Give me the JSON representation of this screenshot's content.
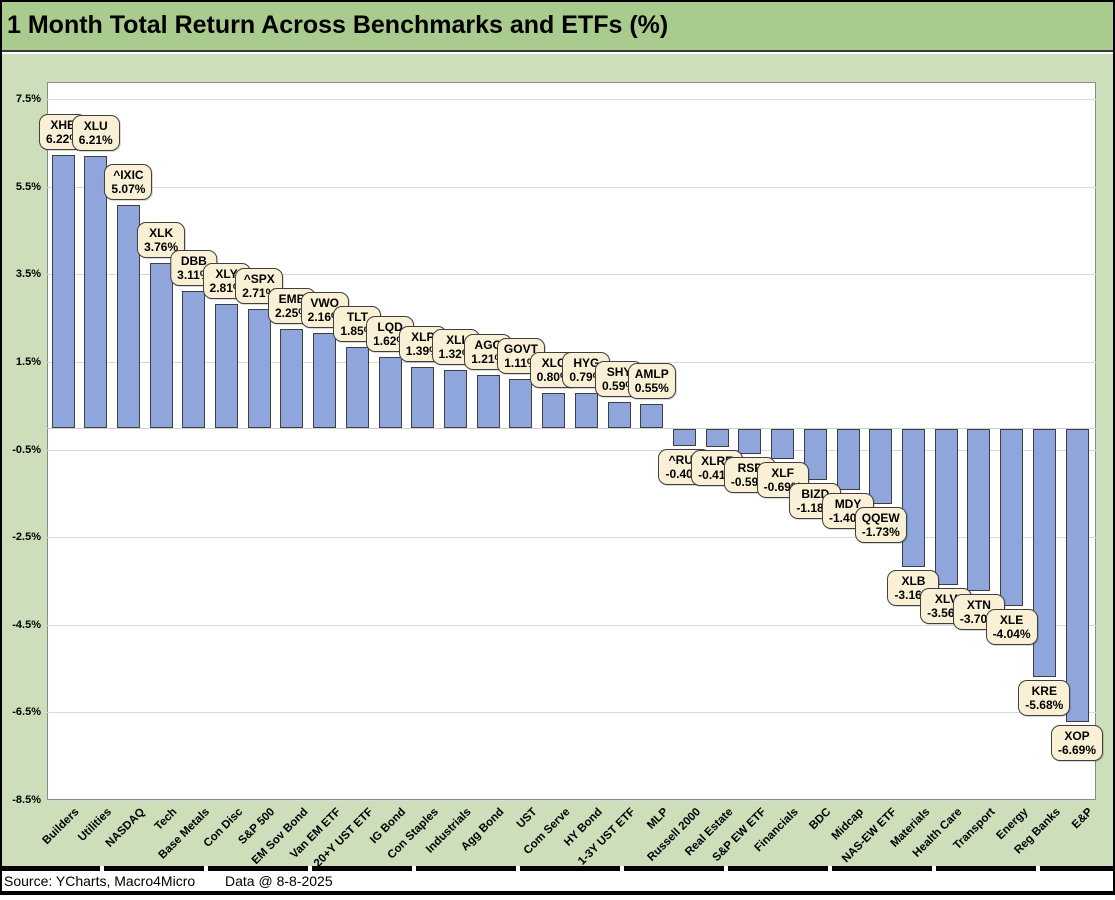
{
  "title_bar": {
    "title": "1 Month Total Return Across Benchmarks and ETFs (%)"
  },
  "chart_data": {
    "type": "bar",
    "title": "1 Month Total Return Across Benchmarks and ETFs (%)",
    "categories": [
      "Builders",
      "Utilities",
      "NASDAQ",
      "Tech",
      "Base Metals",
      "Con Disc",
      "S&P 500",
      "EM Sov Bond",
      "Van EM ETF",
      "20+Y UST ETF",
      "IG Bond",
      "Con Staples",
      "Industrials",
      "Agg Bond",
      "UST",
      "Com Serve",
      "HY Bond",
      "1-3Y UST ETF",
      "MLP",
      "Russell 2000",
      "Real Estate",
      "S&P EW ETF",
      "Financials",
      "BDC",
      "Midcap",
      "NAS-EW ETF",
      "Materials",
      "Health Care",
      "Transport",
      "Energy",
      "Reg Banks",
      "E&P"
    ],
    "points": [
      {
        "category": "Builders",
        "ticker": "XHB",
        "value": 6.22,
        "label": "6.22%"
      },
      {
        "category": "Utilities",
        "ticker": "XLU",
        "value": 6.21,
        "label": "6.21%"
      },
      {
        "category": "NASDAQ",
        "ticker": "^IXIC",
        "value": 5.07,
        "label": "5.07%"
      },
      {
        "category": "Tech",
        "ticker": "XLK",
        "value": 3.76,
        "label": "3.76%"
      },
      {
        "category": "Base Metals",
        "ticker": "DBB",
        "value": 3.11,
        "label": "3.11%"
      },
      {
        "category": "Con Disc",
        "ticker": "XLY",
        "value": 2.81,
        "label": "2.81%"
      },
      {
        "category": "S&P 500",
        "ticker": "^SPX",
        "value": 2.71,
        "label": "2.71%"
      },
      {
        "category": "EM Sov Bond",
        "ticker": "EMB",
        "value": 2.25,
        "label": "2.25%"
      },
      {
        "category": "Van EM ETF",
        "ticker": "VWO",
        "value": 2.16,
        "label": "2.16%"
      },
      {
        "category": "20+Y UST ETF",
        "ticker": "TLT",
        "value": 1.85,
        "label": "1.85%"
      },
      {
        "category": "IG Bond",
        "ticker": "LQD",
        "value": 1.62,
        "label": "1.62%"
      },
      {
        "category": "Con Staples",
        "ticker": "XLP",
        "value": 1.39,
        "label": "1.39%"
      },
      {
        "category": "Industrials",
        "ticker": "XLI",
        "value": 1.32,
        "label": "1.32%"
      },
      {
        "category": "Agg Bond",
        "ticker": "AGG",
        "value": 1.21,
        "label": "1.21%"
      },
      {
        "category": "UST",
        "ticker": "GOVT",
        "value": 1.11,
        "label": "1.11%"
      },
      {
        "category": "Com Serve",
        "ticker": "XLC",
        "value": 0.8,
        "label": "0.80%"
      },
      {
        "category": "HY Bond",
        "ticker": "HYG",
        "value": 0.79,
        "label": "0.79%"
      },
      {
        "category": "1-3Y UST ETF",
        "ticker": "SHY",
        "value": 0.59,
        "label": "0.59%"
      },
      {
        "category": "MLP",
        "ticker": "AMLP",
        "value": 0.55,
        "label": "0.55%"
      },
      {
        "category": "Russell 2000",
        "ticker": "^RUT",
        "value": -0.4,
        "label": "-0.40%"
      },
      {
        "category": "Real Estate",
        "ticker": "XLRE",
        "value": -0.41,
        "label": "-0.41%"
      },
      {
        "category": "S&P EW ETF",
        "ticker": "RSP",
        "value": -0.59,
        "label": "-0.59%"
      },
      {
        "category": "Financials",
        "ticker": "XLF",
        "value": -0.69,
        "label": "-0.69%"
      },
      {
        "category": "BDC",
        "ticker": "BIZD",
        "value": -1.18,
        "label": "-1.18%"
      },
      {
        "category": "Midcap",
        "ticker": "MDY",
        "value": -1.4,
        "label": "-1.40%"
      },
      {
        "category": "NAS-EW ETF",
        "ticker": "QQEW",
        "value": -1.73,
        "label": "-1.73%"
      },
      {
        "category": "Materials",
        "ticker": "XLB",
        "value": -3.16,
        "label": "-3.16%"
      },
      {
        "category": "Health Care",
        "ticker": "XLV",
        "value": -3.56,
        "label": "-3.56%"
      },
      {
        "category": "Transport",
        "ticker": "XTN",
        "value": -3.7,
        "label": "-3.70%"
      },
      {
        "category": "Energy",
        "ticker": "XLE",
        "value": -4.04,
        "label": "-4.04%"
      },
      {
        "category": "Reg Banks",
        "ticker": "KRE",
        "value": -5.68,
        "label": "-5.68%"
      },
      {
        "category": "E&P",
        "ticker": "XOP",
        "value": -6.69,
        "label": "-6.69%"
      }
    ],
    "y_axis": {
      "tick_labels": [
        "7.5%",
        "5.5%",
        "3.5%",
        "1.5%",
        "-0.5%",
        "-2.5%",
        "-4.5%",
        "-6.5%",
        "-8.5%"
      ],
      "tick_values": [
        7.5,
        5.5,
        3.5,
        1.5,
        -0.5,
        -2.5,
        -4.5,
        -6.5,
        -8.5
      ],
      "format": "percent"
    },
    "grid": true,
    "legend": "none",
    "colors": {
      "title_bg": "#A9CC8E",
      "background": "#CCDFBA",
      "plot_bg": "#FFFFFF",
      "gridline": "#D9D9D9",
      "bar_fill": "#8EA6DB",
      "bar_border": "#3F3F3F",
      "callout_fill": "#FAF0D5",
      "callout_border": "#3F3F3F"
    }
  },
  "footer": {
    "source": "Source: YCharts, Macro4Micro",
    "date": "Data @ 8-8-2025"
  }
}
